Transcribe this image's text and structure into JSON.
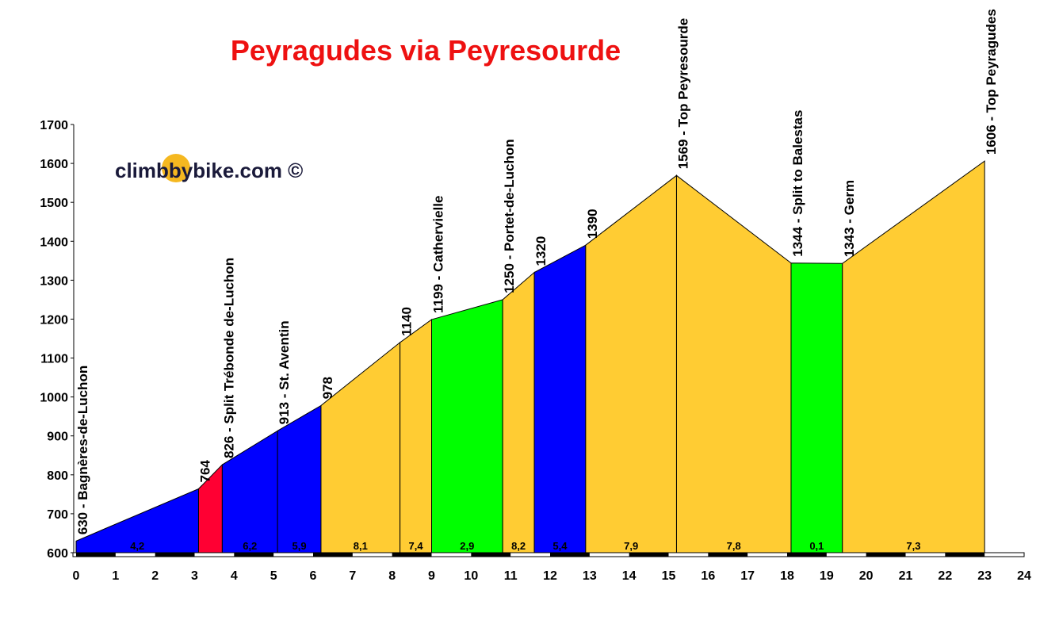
{
  "chart_data": {
    "type": "area",
    "title": "Peyragudes via Peyresourde",
    "watermark": "climbbybike.com ©",
    "x": [
      0,
      3.1,
      3.7,
      5.1,
      6.2,
      8.2,
      9.0,
      10.8,
      11.6,
      12.9,
      15.2,
      18.1,
      19.4,
      23.0
    ],
    "values": [
      630,
      764,
      826,
      913,
      978,
      1140,
      1199,
      1250,
      1320,
      1390,
      1569,
      1344,
      1343,
      1606
    ],
    "point_labels": [
      "630 - Bagnères-de-Luchon",
      "764",
      "826 - Split Trébonde de-Luchon",
      "913 - St. Aventin",
      "978",
      "1140",
      "1199 - Cathervielle",
      "1250 - Portet-de-Luchon",
      "1320",
      "1390",
      "1569 - Top Peyresourde",
      "1344 - Split to Balestas",
      "1343 - Germ",
      "1606 - Top Peyragudes"
    ],
    "segment_colors": [
      "#0000ff",
      "#ff0033",
      "#0000ff",
      "#0000ff",
      "#ffcc33",
      "#ffcc33",
      "#00ff00",
      "#ffcc33",
      "#0000ff",
      "#ffcc33",
      "#ffcc33",
      "#00ff00",
      "#ffcc33"
    ],
    "gradients": [
      4.2,
      null,
      6.2,
      5.9,
      8.1,
      7.4,
      2.9,
      8.2,
      5.4,
      7.9,
      7.8,
      0.1,
      7.3
    ],
    "gradient_labels": [
      "4,2",
      null,
      "6,2",
      "5,9",
      "8,1",
      "7,4",
      "2,9",
      "8,2",
      "5,4",
      "7,9",
      "7,8",
      "0,1",
      "7,3"
    ],
    "xlim": [
      0,
      24
    ],
    "xticks": [
      0,
      1,
      2,
      3,
      4,
      5,
      6,
      7,
      8,
      9,
      10,
      11,
      12,
      13,
      14,
      15,
      16,
      17,
      18,
      19,
      20,
      21,
      22,
      23,
      24
    ],
    "ylim": [
      600,
      1700
    ],
    "yticks": [
      600,
      700,
      800,
      900,
      1000,
      1100,
      1200,
      1300,
      1400,
      1500,
      1600,
      1700
    ]
  }
}
